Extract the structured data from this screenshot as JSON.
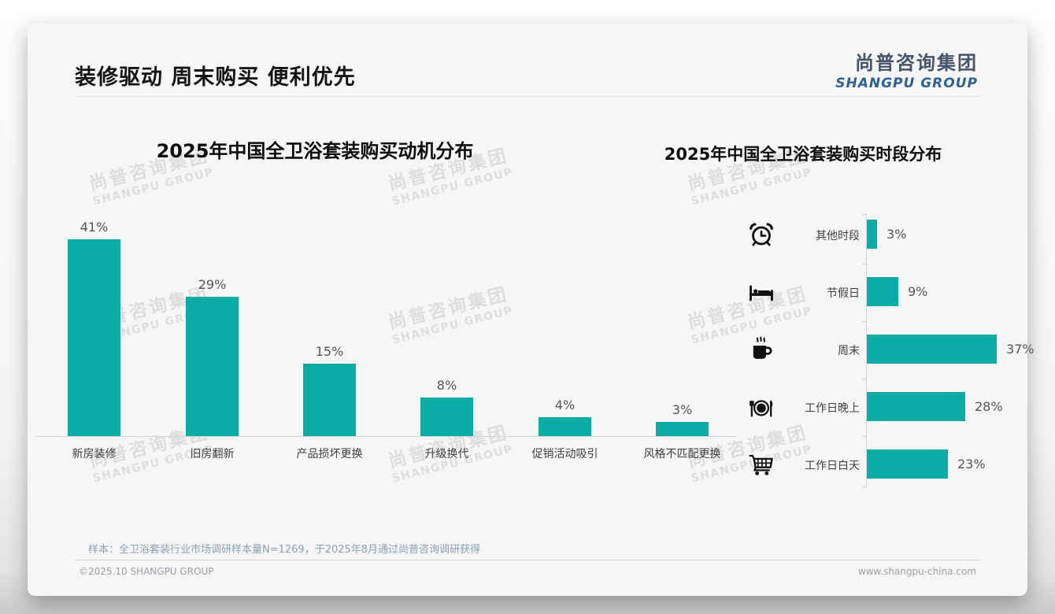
{
  "header": {
    "title": "装修驱动 周末购买 便利优先",
    "logo_cn": "尚普咨询集团",
    "logo_en": "SHANGPU GROUP"
  },
  "colors": {
    "accent_teal": "#0aaca6",
    "logo_blue": "#2e6096",
    "logo_dark": "#44546a",
    "axis_gray": "#d6d6d6"
  },
  "watermark": {
    "line1": "尚普咨询集团",
    "line2": "SHANGPU GROUP"
  },
  "chart_data": [
    {
      "type": "bar",
      "orientation": "vertical",
      "title": "2025年中国全卫浴套装购买动机分布",
      "categories": [
        "新房装修",
        "旧房翻新",
        "产品损坏更换",
        "升级换代",
        "促销活动吸引",
        "风格不匹配更换"
      ],
      "values": [
        41,
        29,
        15,
        8,
        4,
        3
      ],
      "data_labels": [
        "41%",
        "29%",
        "15%",
        "8%",
        "4%",
        "3%"
      ],
      "unit": "%",
      "ylim": [
        0,
        45
      ],
      "bar_color": "#0aaca6",
      "grid": false,
      "legend": "none"
    },
    {
      "type": "bar",
      "orientation": "horizontal",
      "title": "2025年中国全卫浴套装购买时段分布",
      "categories": [
        "其他时段",
        "节假日",
        "周末",
        "工作日晚上",
        "工作日白天"
      ],
      "values": [
        3,
        9,
        37,
        28,
        23
      ],
      "data_labels": [
        "3%",
        "9%",
        "37%",
        "28%",
        "23%"
      ],
      "icons": [
        "alarm-clock",
        "bed",
        "coffee",
        "dining-plate",
        "shopping-cart"
      ],
      "unit": "%",
      "xlim": [
        0,
        40
      ],
      "bar_color": "#0aaca6",
      "grid": false,
      "legend": "none"
    }
  ],
  "footer": {
    "note": "样本：全卫浴套装行业市场调研样本量N=1269，于2025年8月通过尚普咨询调研获得",
    "copyright": "©2025.10 SHANGPU GROUP",
    "website": "www.shangpu-china.com"
  }
}
